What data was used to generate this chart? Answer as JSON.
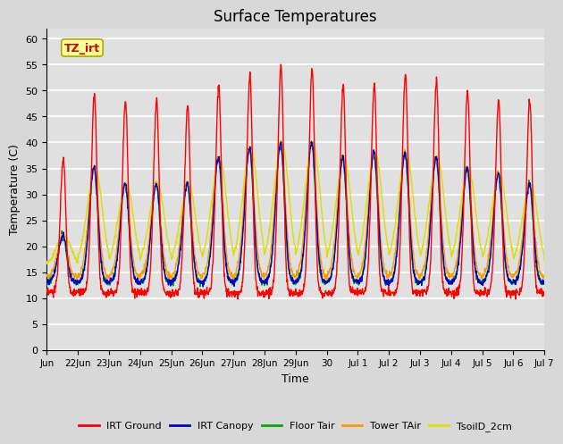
{
  "title": "Surface Temperatures",
  "xlabel": "Time",
  "ylabel": "Temperature (C)",
  "ylim": [
    0,
    62
  ],
  "yticks": [
    0,
    5,
    10,
    15,
    20,
    25,
    30,
    35,
    40,
    45,
    50,
    55,
    60
  ],
  "xtick_labels": [
    "Jun",
    "22Jun",
    "23Jun",
    "24Jun",
    "25Jun",
    "26Jun",
    "27Jun",
    "28Jun",
    "29Jun",
    "30",
    "Jul 1",
    "Jul 2",
    "Jul 3",
    "Jul 4",
    "Jul 5",
    "Jul 6",
    "Jul 7"
  ],
  "legend_entries": [
    "IRT Ground",
    "IRT Canopy",
    "Floor Tair",
    "Tower TAir",
    "TsoilD_2cm"
  ],
  "legend_colors": [
    "#ff0000",
    "#0000cc",
    "#00aa00",
    "#ff9900",
    "#dddd00"
  ],
  "annotation_text": "TZ_irt",
  "annotation_bg": "#ffff99",
  "annotation_border": "#aaaa00",
  "bg_color": "#d8d8d8",
  "plot_bg_color": "#e0e0e0",
  "grid_color": "#ffffff",
  "title_fontsize": 12,
  "n_days": 16,
  "pts_per_day": 96
}
